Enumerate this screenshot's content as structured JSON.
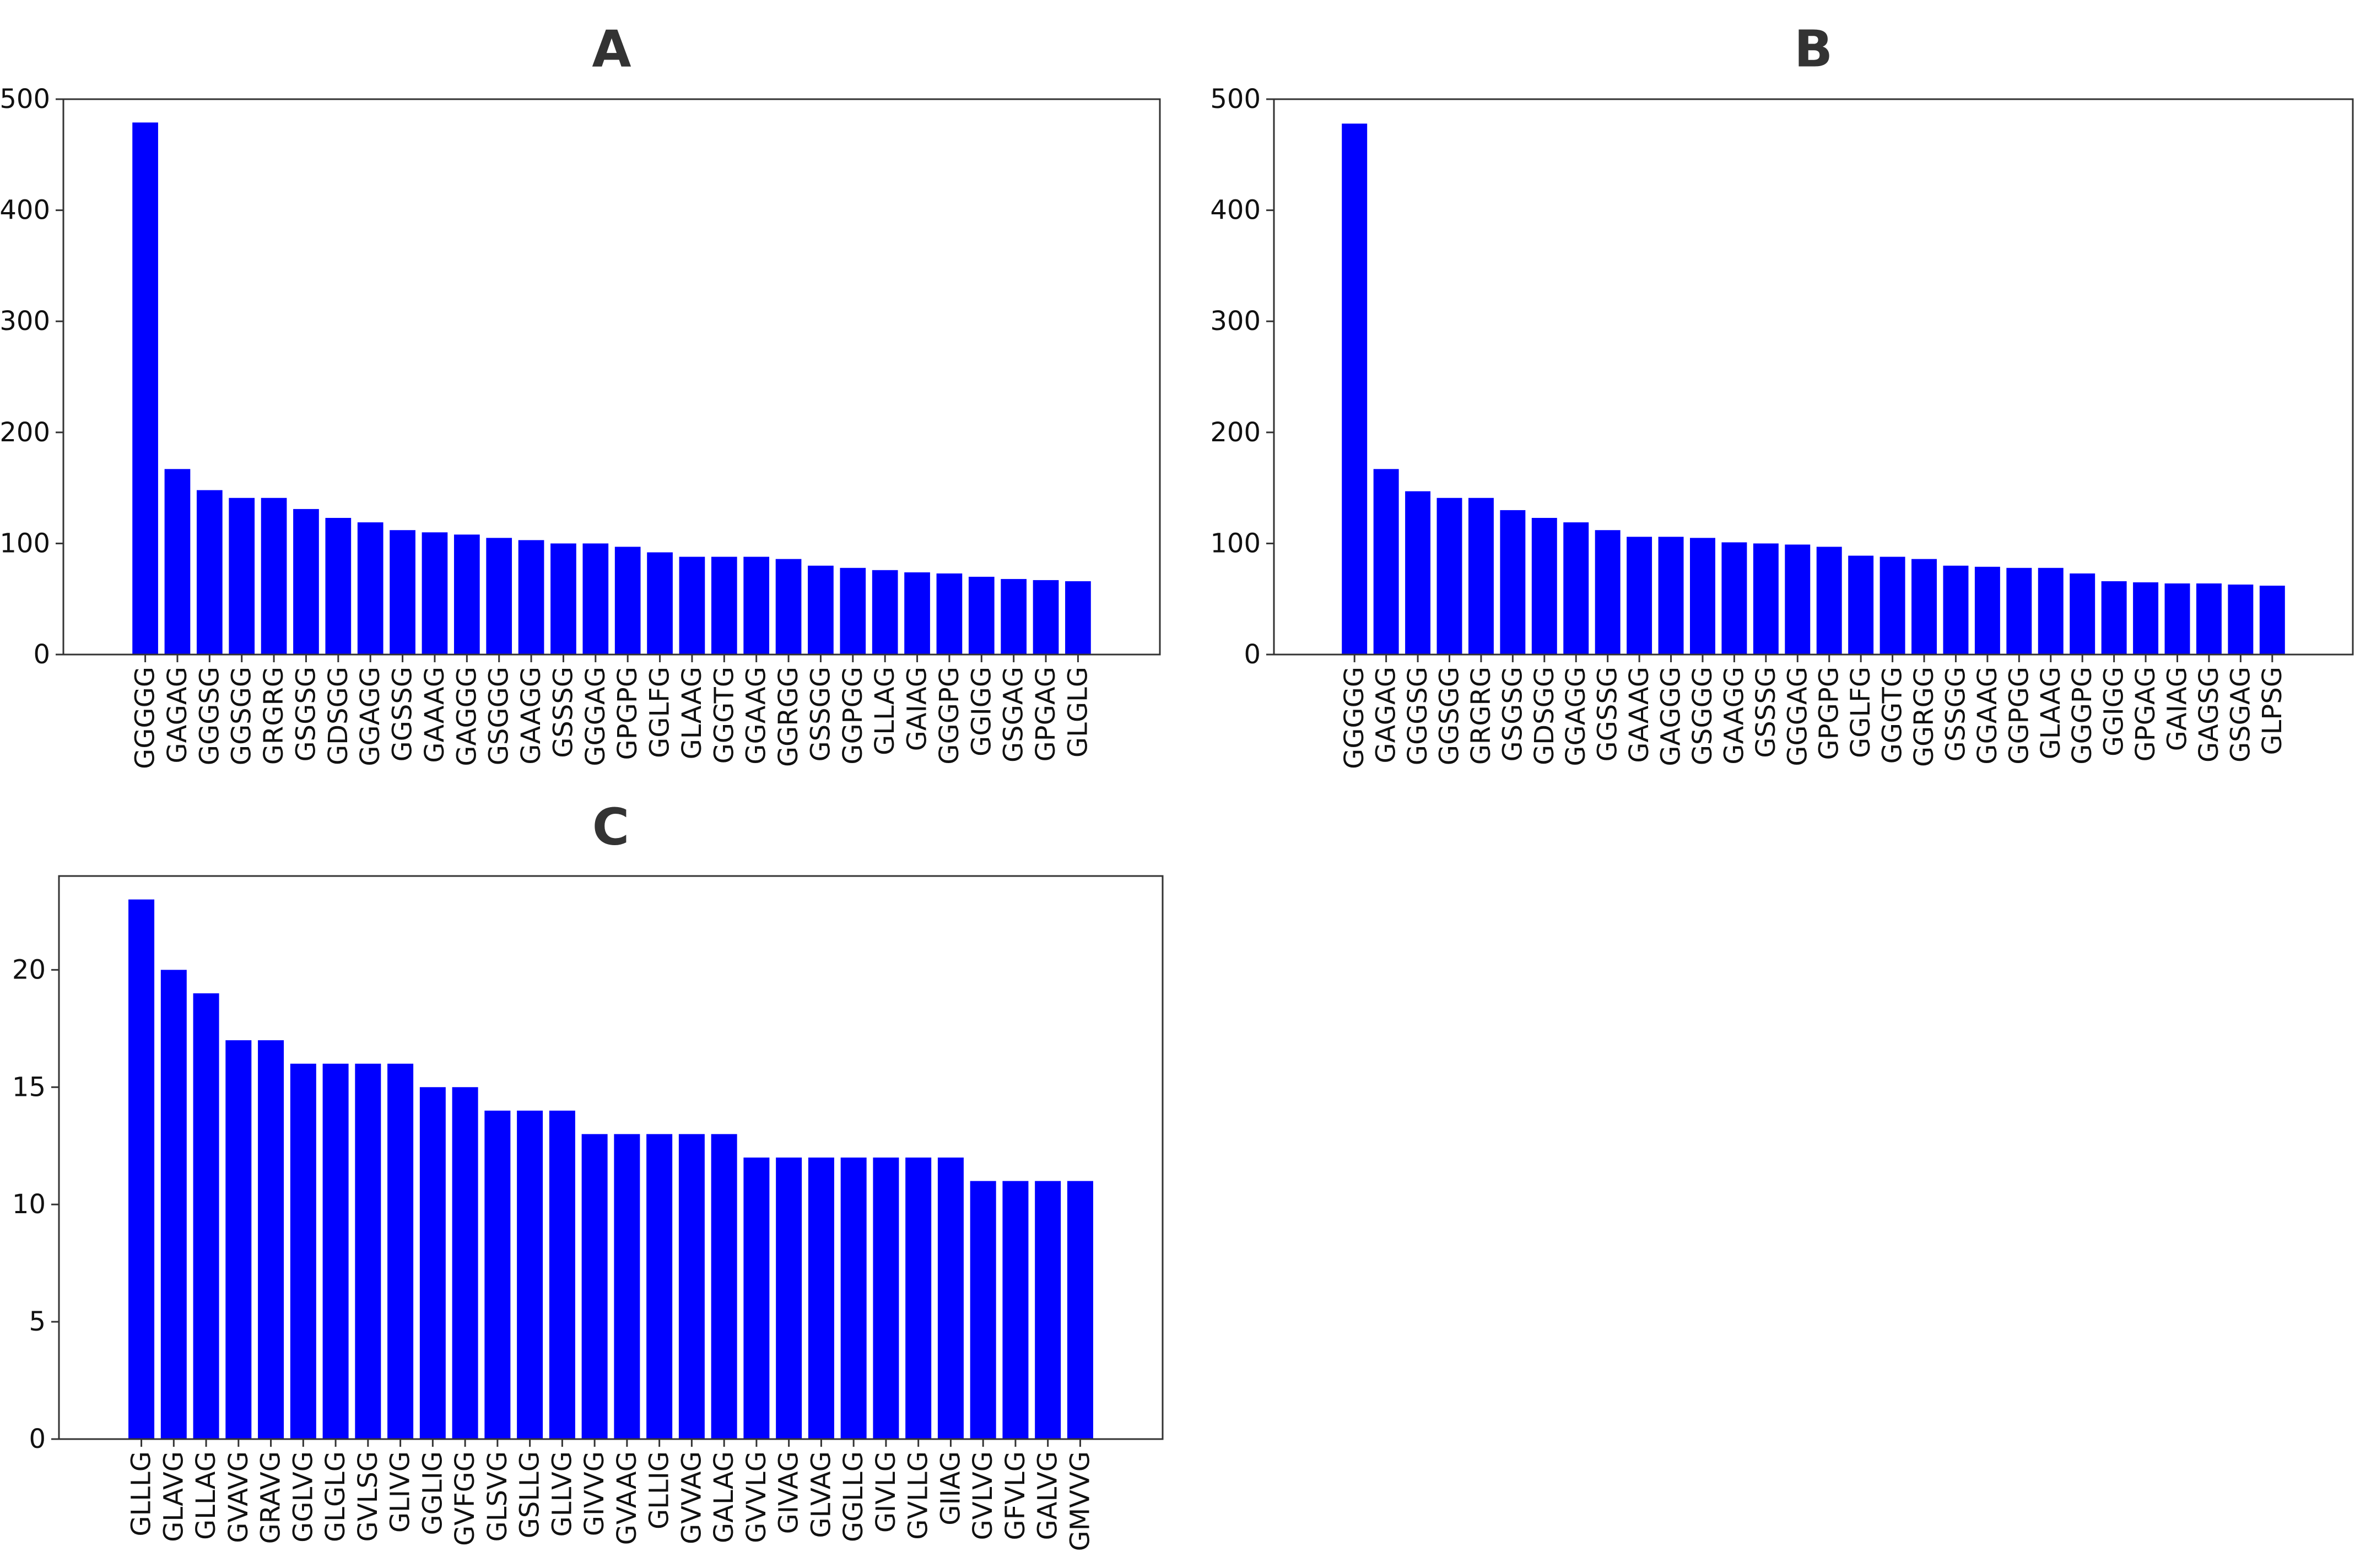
{
  "chart_data": [
    {
      "type": "bar",
      "title": "A",
      "xlabel": "",
      "ylabel": "",
      "ylim": [
        0,
        500
      ],
      "yticks": [
        0,
        100,
        200,
        300,
        400,
        500
      ],
      "grid": false,
      "bar_color": "#0000ff",
      "categories": [
        "GGGGG",
        "GAGAG",
        "GGGSG",
        "GGSGG",
        "GRGRG",
        "GSGSG",
        "GDSGG",
        "GGAGG",
        "GGSSG",
        "GAAAG",
        "GAGGG",
        "GSGGG",
        "GAAGG",
        "GSSSG",
        "GGGAG",
        "GPGPG",
        "GGLFG",
        "GLAAG",
        "GGGTG",
        "GGAAG",
        "GGRGG",
        "GSSGG",
        "GGPGG",
        "GLLAG",
        "GAIAG",
        "GGGPG",
        "GGIGG",
        "GSGAG",
        "GPGAG",
        "GLGLG"
      ],
      "values": [
        479,
        167,
        148,
        141,
        141,
        131,
        123,
        119,
        112,
        110,
        108,
        105,
        103,
        100,
        100,
        97,
        92,
        88,
        88,
        88,
        86,
        80,
        78,
        76,
        74,
        73,
        70,
        68,
        67,
        66
      ]
    },
    {
      "type": "bar",
      "title": "B",
      "xlabel": "",
      "ylabel": "",
      "ylim": [
        0,
        500
      ],
      "yticks": [
        0,
        100,
        200,
        300,
        400,
        500
      ],
      "grid": false,
      "bar_color": "#0000ff",
      "categories": [
        "GGGGG",
        "GAGAG",
        "GGGSG",
        "GGSGG",
        "GRGRG",
        "GSGSG",
        "GDSGG",
        "GGAGG",
        "GGSSG",
        "GAAAG",
        "GAGGG",
        "GSGGG",
        "GAAGG",
        "GSSSG",
        "GGGAG",
        "GPGPG",
        "GGLFG",
        "GGGTG",
        "GGRGG",
        "GSSGG",
        "GGAAG",
        "GGPGG",
        "GLAAG",
        "GGGPG",
        "GGIGG",
        "GPGAG",
        "GAIAG",
        "GAGSG",
        "GSGAG",
        "GLPSG"
      ],
      "values": [
        478,
        167,
        147,
        141,
        141,
        130,
        123,
        119,
        112,
        106,
        106,
        105,
        101,
        100,
        99,
        97,
        89,
        88,
        86,
        80,
        79,
        78,
        78,
        73,
        66,
        65,
        64,
        64,
        63,
        62
      ]
    },
    {
      "type": "bar",
      "title": "C",
      "xlabel": "",
      "ylabel": "",
      "ylim": [
        0,
        24
      ],
      "yticks": [
        0,
        5,
        10,
        15,
        20
      ],
      "grid": false,
      "bar_color": "#0000ff",
      "categories": [
        "GLLLG",
        "GLAVG",
        "GLLAG",
        "GVAVG",
        "GRAVG",
        "GGLVG",
        "GLGLG",
        "GVLSG",
        "GLIVG",
        "GGLIG",
        "GVFGG",
        "GLSVG",
        "GSLLG",
        "GLLVG",
        "GIVVG",
        "GVAAG",
        "GLLIG",
        "GVVAG",
        "GALAG",
        "GVVLG",
        "GIVAG",
        "GLVAG",
        "GGLLG",
        "GIVLG",
        "GVLLG",
        "GIIAG",
        "GVLVG",
        "GFVLG",
        "GALVG",
        "GMVVG"
      ],
      "values": [
        23,
        20,
        19,
        17,
        17,
        16,
        16,
        16,
        16,
        15,
        15,
        14,
        14,
        14,
        13,
        13,
        13,
        13,
        13,
        12,
        12,
        12,
        12,
        12,
        12,
        12,
        11,
        11,
        11,
        11
      ]
    }
  ]
}
